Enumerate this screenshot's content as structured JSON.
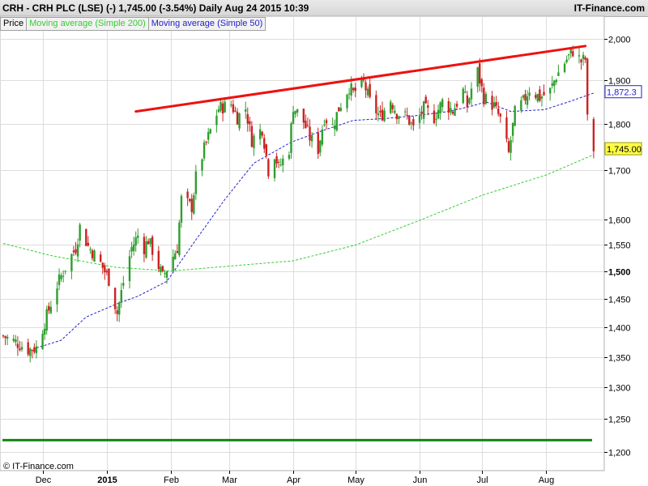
{
  "header": {
    "title": "CRH - CRH PLC (LSE) (-)    1,745.00 (-3.54%)    Daily  Aug 24 2015 10:39",
    "brand": "IT-Finance.com"
  },
  "legend": {
    "price": "Price",
    "ma200": "Moving average (Simple 200)",
    "ma50": "Moving average (Simple 50)"
  },
  "credit": "© IT-Finance.com",
  "colors": {
    "up": "#2e9e2e",
    "down": "#cc2222",
    "ma200": "#33cc33",
    "ma50": "#2222cc",
    "trendline": "#ee1111",
    "support": "#118811",
    "grid": "#dddddd"
  },
  "chart_data": {
    "type": "candlestick",
    "y_scale": "log",
    "ylim": [
      1180,
      2040
    ],
    "y_ticks": [
      {
        "value": 2000,
        "label": "2,000"
      },
      {
        "value": 1900,
        "label": "1,900"
      },
      {
        "value": 1800,
        "label": "1,800"
      },
      {
        "value": 1700,
        "label": "1,700"
      },
      {
        "value": 1600,
        "label": "1,600"
      },
      {
        "value": 1550,
        "label": "1,550"
      },
      {
        "value": 1500,
        "label": "1,500",
        "bold": true
      },
      {
        "value": 1450,
        "label": "1,450"
      },
      {
        "value": 1400,
        "label": "1,400"
      },
      {
        "value": 1350,
        "label": "1,350"
      },
      {
        "value": 1300,
        "label": "1,300"
      },
      {
        "value": 1250,
        "label": "1,250"
      },
      {
        "value": 1200,
        "label": "1,200"
      }
    ],
    "x_ticks": [
      {
        "label": "Dec",
        "date": "2014-12-01"
      },
      {
        "label": "2015",
        "date": "2015-01-01",
        "bold": true
      },
      {
        "label": "Feb",
        "date": "2015-02-01"
      },
      {
        "label": "Mar",
        "date": "2015-03-01"
      },
      {
        "label": "Apr",
        "date": "2015-04-01"
      },
      {
        "label": "May",
        "date": "2015-05-01"
      },
      {
        "label": "Jun",
        "date": "2015-06-01"
      },
      {
        "label": "Jul",
        "date": "2015-07-01"
      },
      {
        "label": "Aug",
        "date": "2015-08-01"
      }
    ],
    "x_range": [
      "2014-11-12",
      "2015-08-26"
    ],
    "anchors": [
      [
        "2014-11-12",
        1385
      ],
      [
        "2014-11-18",
        1375
      ],
      [
        "2014-11-24",
        1362
      ],
      [
        "2014-11-28",
        1365
      ],
      [
        "2014-12-03",
        1420
      ],
      [
        "2014-12-08",
        1475
      ],
      [
        "2014-12-12",
        1508
      ],
      [
        "2014-12-17",
        1545
      ],
      [
        "2014-12-19",
        1585
      ],
      [
        "2014-12-23",
        1548
      ],
      [
        "2014-12-29",
        1515
      ],
      [
        "2015-01-02",
        1485
      ],
      [
        "2015-01-06",
        1425
      ],
      [
        "2015-01-09",
        1480
      ],
      [
        "2015-01-13",
        1545
      ],
      [
        "2015-01-16",
        1568
      ],
      [
        "2015-01-19",
        1545
      ],
      [
        "2015-01-21",
        1560
      ],
      [
        "2015-01-26",
        1510
      ],
      [
        "2015-01-28",
        1490
      ],
      [
        "2015-01-30",
        1505
      ],
      [
        "2015-02-04",
        1545
      ],
      [
        "2015-02-06",
        1640
      ],
      [
        "2015-02-11",
        1625
      ],
      [
        "2015-02-13",
        1685
      ],
      [
        "2015-02-17",
        1745
      ],
      [
        "2015-02-20",
        1785
      ],
      [
        "2015-02-24",
        1835
      ],
      [
        "2015-03-02",
        1845
      ],
      [
        "2015-03-05",
        1815
      ],
      [
        "2015-03-09",
        1835
      ],
      [
        "2015-03-12",
        1765
      ],
      [
        "2015-03-17",
        1790
      ],
      [
        "2015-03-20",
        1700
      ],
      [
        "2015-03-23",
        1735
      ],
      [
        "2015-03-25",
        1705
      ],
      [
        "2015-03-30",
        1745
      ],
      [
        "2015-04-01",
        1840
      ],
      [
        "2015-04-06",
        1805
      ],
      [
        "2015-04-09",
        1770
      ],
      [
        "2015-04-13",
        1745
      ],
      [
        "2015-04-16",
        1815
      ],
      [
        "2015-04-20",
        1795
      ],
      [
        "2015-04-23",
        1835
      ],
      [
        "2015-04-28",
        1885
      ],
      [
        "2015-04-30",
        1870
      ],
      [
        "2015-05-05",
        1895
      ],
      [
        "2015-05-08",
        1850
      ],
      [
        "2015-05-13",
        1815
      ],
      [
        "2015-05-18",
        1855
      ],
      [
        "2015-05-21",
        1825
      ],
      [
        "2015-05-26",
        1815
      ],
      [
        "2015-05-29",
        1790
      ],
      [
        "2015-06-03",
        1835
      ],
      [
        "2015-06-08",
        1815
      ],
      [
        "2015-06-12",
        1850
      ],
      [
        "2015-06-17",
        1830
      ],
      [
        "2015-06-22",
        1875
      ],
      [
        "2015-06-24",
        1840
      ],
      [
        "2015-06-26",
        1880
      ],
      [
        "2015-06-29",
        1920
      ],
      [
        "2015-07-02",
        1860
      ],
      [
        "2015-07-07",
        1840
      ],
      [
        "2015-07-10",
        1810
      ],
      [
        "2015-07-14",
        1735
      ],
      [
        "2015-07-17",
        1825
      ],
      [
        "2015-07-21",
        1850
      ],
      [
        "2015-07-24",
        1880
      ],
      [
        "2015-07-29",
        1860
      ],
      [
        "2015-08-03",
        1875
      ],
      [
        "2015-08-06",
        1910
      ],
      [
        "2015-08-11",
        1950
      ],
      [
        "2015-08-14",
        1970
      ],
      [
        "2015-08-18",
        1945
      ],
      [
        "2015-08-20",
        1950
      ],
      [
        "2015-08-21",
        1809
      ],
      [
        "2015-08-24",
        1745
      ]
    ],
    "series": [
      {
        "name": "Moving average (Simple 200)",
        "points": [
          [
            "2014-11-12",
            1553
          ],
          [
            "2014-12-05",
            1530
          ],
          [
            "2015-01-05",
            1508
          ],
          [
            "2015-02-01",
            1501
          ],
          [
            "2015-03-01",
            1510
          ],
          [
            "2015-04-01",
            1520
          ],
          [
            "2015-05-01",
            1550
          ],
          [
            "2015-06-01",
            1598
          ],
          [
            "2015-07-01",
            1648
          ],
          [
            "2015-08-01",
            1690
          ],
          [
            "2015-08-24",
            1733
          ]
        ]
      },
      {
        "name": "Moving average (Simple 50)",
        "points": [
          [
            "2014-11-28",
            1365
          ],
          [
            "2014-12-10",
            1378
          ],
          [
            "2014-12-22",
            1418
          ],
          [
            "2015-01-05",
            1440
          ],
          [
            "2015-01-16",
            1455
          ],
          [
            "2015-01-30",
            1482
          ],
          [
            "2015-02-13",
            1560
          ],
          [
            "2015-02-27",
            1640
          ],
          [
            "2015-03-13",
            1715
          ],
          [
            "2015-03-31",
            1760
          ],
          [
            "2015-04-15",
            1785
          ],
          [
            "2015-04-30",
            1808
          ],
          [
            "2015-05-15",
            1812
          ],
          [
            "2015-05-29",
            1818
          ],
          [
            "2015-06-15",
            1828
          ],
          [
            "2015-06-26",
            1840
          ],
          [
            "2015-07-03",
            1850
          ],
          [
            "2015-07-15",
            1828
          ],
          [
            "2015-07-31",
            1832
          ],
          [
            "2015-08-12",
            1850
          ],
          [
            "2015-08-24",
            1870
          ]
        ]
      }
    ],
    "trendline": [
      [
        "2015-01-15",
        1828
      ],
      [
        "2015-08-20",
        1982
      ]
    ],
    "support_level": 1218,
    "last_price": {
      "value": 1745,
      "label": "1,745.00"
    },
    "ma50_value": {
      "value": 1872.3,
      "label": "1,872.3"
    }
  }
}
